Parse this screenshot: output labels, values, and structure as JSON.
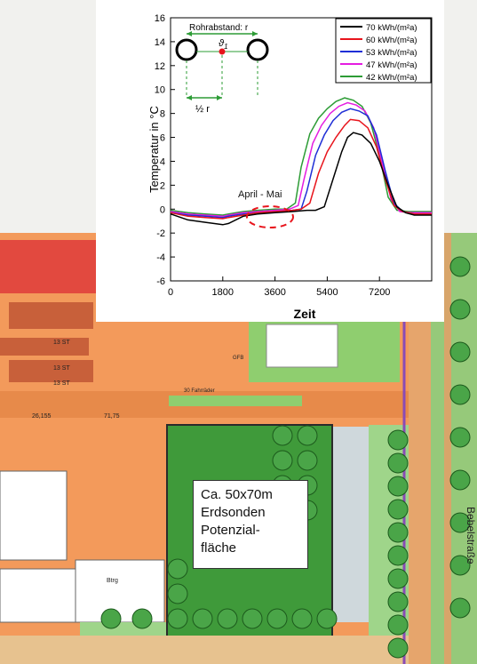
{
  "chart_data": {
    "type": "line",
    "xlabel": "Zeit",
    "ylabel": "Temperatur in °C",
    "xlim": [
      0,
      9000
    ],
    "ylim": [
      -6,
      16
    ],
    "xticks": [
      0,
      1800,
      3600,
      5400,
      7200
    ],
    "yticks": [
      -6,
      -4,
      -2,
      0,
      2,
      4,
      6,
      8,
      10,
      12,
      14,
      16
    ],
    "legend_position": "top-right",
    "series": [
      {
        "name": "70 kWh/(m²a)",
        "color": "#000000",
        "x": [
          0,
          600,
          1200,
          1800,
          2000,
          2500,
          3000,
          3600,
          4200,
          4700,
          5000,
          5300,
          5600,
          5900,
          6100,
          6300,
          6600,
          6900,
          7200,
          7500,
          7800,
          8100,
          8400,
          9000
        ],
        "y": [
          -0.4,
          -0.9,
          -1.1,
          -1.3,
          -1.2,
          -0.6,
          -0.4,
          -0.3,
          -0.2,
          -0.1,
          -0.1,
          0.2,
          2.5,
          4.8,
          6.0,
          6.4,
          6.2,
          5.5,
          4.0,
          2.0,
          0.2,
          -0.3,
          -0.5,
          -0.5
        ]
      },
      {
        "name": "60 kWh/(m²a)",
        "color": "#e8141c",
        "x": [
          0,
          600,
          1200,
          1800,
          2000,
          2500,
          3000,
          3600,
          4200,
          4500,
          4800,
          5100,
          5400,
          5700,
          6000,
          6200,
          6500,
          6800,
          7100,
          7400,
          7700,
          8000,
          8400,
          9000
        ],
        "y": [
          -0.3,
          -0.6,
          -0.7,
          -0.8,
          -0.7,
          -0.5,
          -0.3,
          -0.2,
          -0.1,
          0.0,
          0.5,
          3.0,
          4.8,
          6.0,
          7.0,
          7.5,
          7.4,
          6.8,
          5.2,
          2.5,
          0.3,
          -0.2,
          -0.4,
          -0.4
        ]
      },
      {
        "name": "53 kWh/(m²a)",
        "color": "#1f2fd6",
        "x": [
          0,
          600,
          1200,
          1800,
          2000,
          2500,
          3000,
          3600,
          4200,
          4500,
          4700,
          5000,
          5300,
          5600,
          5900,
          6200,
          6500,
          6800,
          7100,
          7400,
          7700,
          8000,
          8400,
          9000
        ],
        "y": [
          -0.3,
          -0.5,
          -0.6,
          -0.7,
          -0.6,
          -0.4,
          -0.3,
          -0.2,
          -0.1,
          0.0,
          1.5,
          4.5,
          6.2,
          7.4,
          8.1,
          8.4,
          8.2,
          7.8,
          6.2,
          3.2,
          0.5,
          -0.2,
          -0.4,
          -0.4
        ]
      },
      {
        "name": "47 kWh/(m²a)",
        "color": "#e51ce0",
        "x": [
          0,
          600,
          1200,
          1800,
          2000,
          2500,
          3000,
          3600,
          4100,
          4400,
          4600,
          4900,
          5200,
          5500,
          5800,
          6100,
          6400,
          6700,
          7000,
          7300,
          7600,
          7900,
          8300,
          9000
        ],
        "y": [
          -0.2,
          -0.4,
          -0.5,
          -0.6,
          -0.5,
          -0.3,
          -0.2,
          -0.1,
          0.0,
          0.3,
          2.5,
          5.5,
          7.0,
          8.0,
          8.6,
          8.9,
          8.7,
          8.2,
          6.8,
          3.8,
          0.8,
          -0.2,
          -0.3,
          -0.3
        ]
      },
      {
        "name": "42 kWh/(m²a)",
        "color": "#2d9c36",
        "x": [
          0,
          600,
          1200,
          1800,
          2000,
          2500,
          3000,
          3600,
          4000,
          4300,
          4500,
          4800,
          5100,
          5400,
          5700,
          6000,
          6300,
          6600,
          6900,
          7200,
          7500,
          7800,
          8200,
          9000
        ],
        "y": [
          -0.1,
          -0.3,
          -0.4,
          -0.5,
          -0.4,
          -0.2,
          -0.1,
          0.0,
          0.0,
          0.5,
          3.5,
          6.3,
          7.6,
          8.4,
          9.0,
          9.3,
          9.1,
          8.6,
          7.2,
          4.5,
          1.0,
          -0.1,
          -0.2,
          -0.2
        ]
      }
    ],
    "annotations": {
      "period_label": "April - Mai",
      "inset_title": "Rohrabstand: r",
      "inset_symbol": "ϑ",
      "inset_symbol_sub": "1",
      "inset_half": "½ r"
    }
  },
  "map": {
    "callout_lines": [
      "Ca. 50x70m",
      "Erdsonden",
      "Potenzial-",
      "fläche"
    ],
    "street_name": "Bebelstraße",
    "building_labels": [
      "13 ST",
      "13 ST",
      "13 ST",
      "GFB",
      "30 Fahrräder",
      "26,155",
      "71,75",
      "Btrg"
    ],
    "colors": {
      "plot_area": "#3f9a3a",
      "building": "#f08a3a",
      "road": "#e3a26b"
    }
  }
}
